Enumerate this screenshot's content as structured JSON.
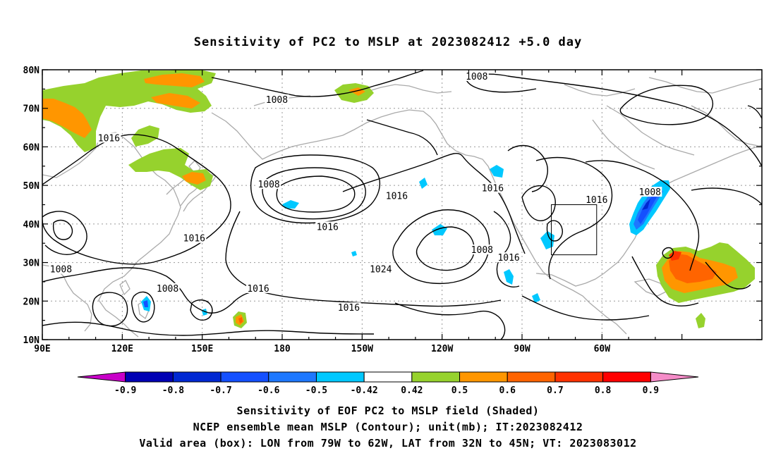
{
  "title": "Sensitivity of PC2 to MSLP at 2023082412 +5.0 day",
  "lat_labels": [
    "80N",
    "70N",
    "60N",
    "50N",
    "40N",
    "30N",
    "20N",
    "10N"
  ],
  "lon_labels": [
    "90E",
    "120E",
    "150E",
    "180",
    "150W",
    "120W",
    "90W",
    "60W"
  ],
  "contour_labels": [
    {
      "text": "1008",
      "lon": -107,
      "lat": 78
    },
    {
      "text": "1008",
      "lon": 178,
      "lat": 72
    },
    {
      "text": "1016",
      "lon": 115,
      "lat": 62
    },
    {
      "text": "1008",
      "lon": -42,
      "lat": 48
    },
    {
      "text": "1008",
      "lon": 175,
      "lat": 50
    },
    {
      "text": "1016",
      "lon": -101,
      "lat": 49
    },
    {
      "text": "1016",
      "lon": -62,
      "lat": 46
    },
    {
      "text": "1016",
      "lon": -137,
      "lat": 47
    },
    {
      "text": "1016",
      "lon": 147,
      "lat": 36
    },
    {
      "text": "1016",
      "lon": -163,
      "lat": 39
    },
    {
      "text": "1008",
      "lon": -105,
      "lat": 33
    },
    {
      "text": "1016",
      "lon": -95,
      "lat": 31
    },
    {
      "text": "1024",
      "lon": -143,
      "lat": 28
    },
    {
      "text": "1008",
      "lon": 97,
      "lat": 28
    },
    {
      "text": "1008",
      "lon": 137,
      "lat": 23
    },
    {
      "text": "1016",
      "lon": 171,
      "lat": 23
    },
    {
      "text": "1016",
      "lon": -155,
      "lat": 18
    }
  ],
  "colorbar": {
    "labels": [
      "-0.9",
      "-0.8",
      "-0.7",
      "-0.6",
      "-0.5",
      "-0.42",
      "0.42",
      "0.5",
      "0.6",
      "0.7",
      "0.8",
      "0.9"
    ],
    "colors": [
      "#c800c8",
      "#0000b4",
      "#0028d2",
      "#1450ff",
      "#1e78ff",
      "#00c8ff",
      "#ffffff",
      "#96d22d",
      "#ff9600",
      "#ff6400",
      "#ff3200",
      "#ff0000",
      "#f58cc8"
    ]
  },
  "valid_box": {
    "lon_min": -79,
    "lon_max": -62,
    "lat_min": 32,
    "lat_max": 45
  },
  "captions": [
    "Sensitivity of EOF PC2 to MSLP field (Shaded)",
    "NCEP ensemble mean MSLP (Contour); unit(mb); IT:2023082412",
    "Valid area (box): LON from 79W to 62W, LAT from 32N to 45N; VT: 2023083012"
  ]
}
